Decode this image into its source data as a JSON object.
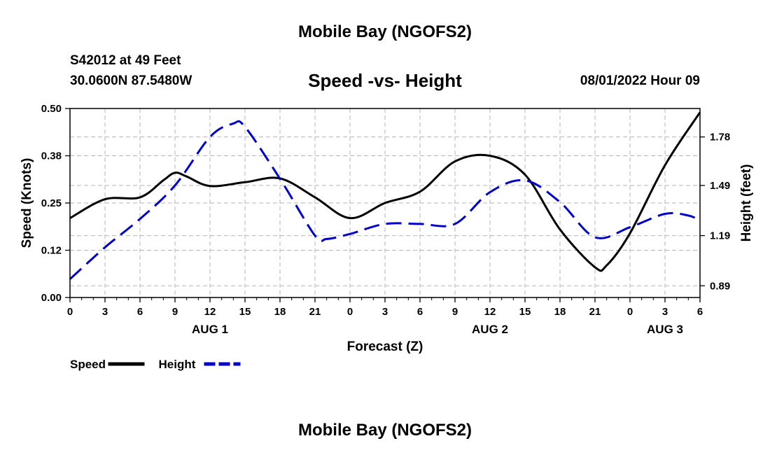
{
  "header": {
    "title": "Mobile Bay (NGOFS2)",
    "station": "S42012 at 49 Feet",
    "coordinates": "30.0600N  87.5480W",
    "subtitle": "Speed -vs- Height",
    "datetime": "08/01/2022 Hour 09",
    "footer_title": "Mobile Bay (NGOFS2)"
  },
  "chart_data": {
    "type": "line",
    "xlabel": "Forecast (Z)",
    "ylabel": "Speed (Knots)",
    "y2label": "Height (feet)",
    "ylim": [
      0,
      0.5
    ],
    "y2lim": [
      0.82,
      1.95
    ],
    "xlim_hours": [
      0,
      54
    ],
    "x_ticks": [
      {
        "hour": 0,
        "label": "0"
      },
      {
        "hour": 3,
        "label": "3"
      },
      {
        "hour": 6,
        "label": "6"
      },
      {
        "hour": 9,
        "label": "9"
      },
      {
        "hour": 12,
        "label": "12"
      },
      {
        "hour": 15,
        "label": "15"
      },
      {
        "hour": 18,
        "label": "18"
      },
      {
        "hour": 21,
        "label": "21"
      },
      {
        "hour": 24,
        "label": "0"
      },
      {
        "hour": 27,
        "label": "3"
      },
      {
        "hour": 30,
        "label": "6"
      },
      {
        "hour": 33,
        "label": "9"
      },
      {
        "hour": 36,
        "label": "12"
      },
      {
        "hour": 39,
        "label": "15"
      },
      {
        "hour": 42,
        "label": "18"
      },
      {
        "hour": 45,
        "label": "21"
      },
      {
        "hour": 48,
        "label": "0"
      },
      {
        "hour": 51,
        "label": "3"
      },
      {
        "hour": 54,
        "label": "6"
      }
    ],
    "day_labels": [
      {
        "hour": 12,
        "label": "AUG 1"
      },
      {
        "hour": 36,
        "label": "AUG 2"
      },
      {
        "hour": 51,
        "label": "AUG 3"
      }
    ],
    "y_ticks": [
      "0.00",
      "0.12",
      "0.25",
      "0.38",
      "0.50"
    ],
    "y_tick_values": [
      0,
      0.125,
      0.25,
      0.375,
      0.5
    ],
    "y2_ticks": [
      "0.89",
      "1.19",
      "1.49",
      "1.78"
    ],
    "y2_tick_values": [
      0.89,
      1.19,
      1.49,
      1.78
    ],
    "grid": true,
    "legend_position": "bottom-left",
    "series": [
      {
        "name": "Speed",
        "axis": "left",
        "color": "#000000",
        "dash": "solid",
        "x": [
          0,
          3,
          6,
          8,
          9,
          10,
          12,
          15,
          18,
          21,
          24,
          27,
          30,
          33,
          36,
          39,
          42,
          45,
          46,
          48,
          51,
          54
        ],
        "y": [
          0.21,
          0.26,
          0.265,
          0.31,
          0.33,
          0.32,
          0.295,
          0.305,
          0.315,
          0.265,
          0.21,
          0.25,
          0.28,
          0.36,
          0.375,
          0.325,
          0.18,
          0.08,
          0.085,
          0.17,
          0.35,
          0.49
        ]
      },
      {
        "name": "Height",
        "axis": "right",
        "color": "#0000cc",
        "dash": "dashed",
        "x": [
          0,
          3,
          6,
          9,
          12,
          14,
          15,
          18,
          21,
          22,
          24,
          27,
          30,
          33,
          36,
          39,
          42,
          45,
          48,
          51,
          53,
          54
        ],
        "y": [
          0.93,
          1.12,
          1.29,
          1.49,
          1.78,
          1.86,
          1.84,
          1.53,
          1.19,
          1.17,
          1.2,
          1.26,
          1.26,
          1.26,
          1.45,
          1.52,
          1.39,
          1.18,
          1.24,
          1.32,
          1.31,
          1.28
        ]
      }
    ]
  }
}
